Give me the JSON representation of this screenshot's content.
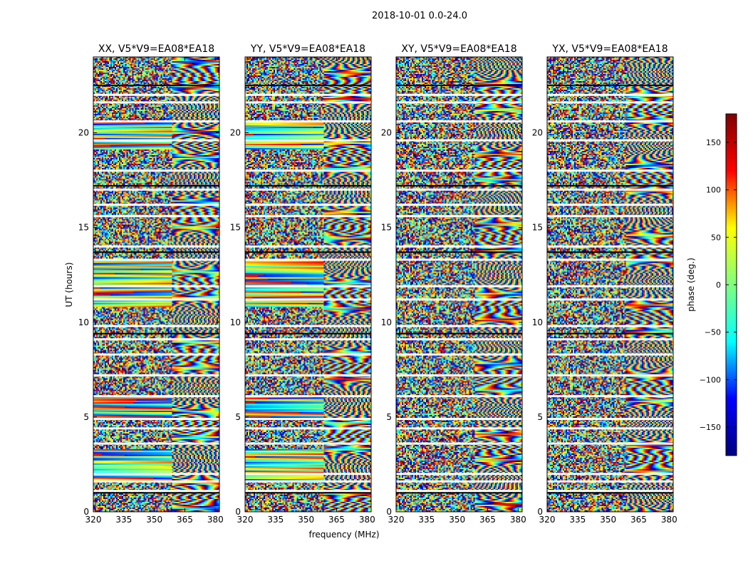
{
  "figure": {
    "suptitle": "2018-10-01 0.0-24.0"
  },
  "chart_data": {
    "type": "heatmap",
    "xlabel": "frequency (MHz)",
    "ylabel": "UT (hours)",
    "xlim": [
      320,
      382
    ],
    "ylim": [
      0,
      24
    ],
    "xticks": [
      320,
      335,
      350,
      365,
      380
    ],
    "yticks": [
      0,
      5,
      10,
      15,
      20
    ],
    "xtick_labels": [
      "320",
      "335",
      "350",
      "365",
      "380"
    ],
    "ytick_labels": [
      "0",
      "5",
      "10",
      "15",
      "20"
    ],
    "panels": [
      {
        "title": "XX, V5*V9=EA08*EA18"
      },
      {
        "title": "YY, V5*V9=EA08*EA18"
      },
      {
        "title": "XY, V5*V9=EA08*EA18"
      },
      {
        "title": "YX, V5*V9=EA08*EA18"
      }
    ],
    "colorbar": {
      "label": "phase (deg.)",
      "range": [
        -180,
        180
      ],
      "colormap": "jet",
      "ticks": [
        -150,
        -100,
        -50,
        0,
        50,
        100,
        150
      ],
      "tick_labels": [
        "−150",
        "−100",
        "−50",
        "0",
        "50",
        "100",
        "150"
      ],
      "colors": [
        "#000080",
        "#0000ff",
        "#00ffff",
        "#80ff80",
        "#ffff00",
        "#ff0000",
        "#800000"
      ]
    },
    "blank_bands_hours": [
      1.1,
      1.6,
      2.0,
      3.6,
      4.4,
      4.9,
      6.1,
      7.2,
      8.3,
      9.1,
      9.8,
      11.2,
      11.9,
      13.3,
      14.0,
      15.6,
      16.2,
      17.0,
      18.0,
      19.6,
      20.6,
      21.6,
      22.0
    ],
    "black_bands_hours": [
      1.0,
      9.4,
      13.7,
      17.2,
      22.5
    ]
  }
}
